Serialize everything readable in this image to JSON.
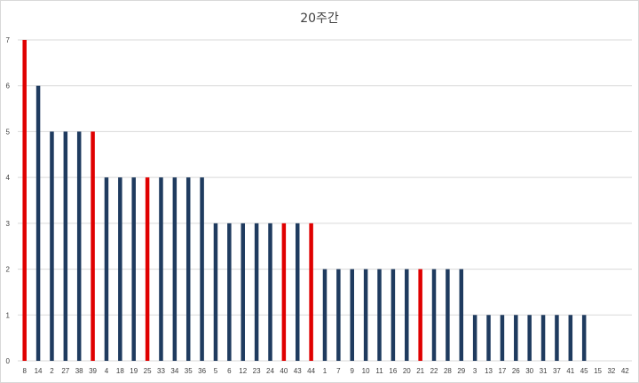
{
  "chart_data": {
    "type": "bar",
    "title": "20주간",
    "categories": [
      "8",
      "14",
      "2",
      "27",
      "38",
      "39",
      "4",
      "18",
      "19",
      "25",
      "33",
      "34",
      "35",
      "36",
      "5",
      "6",
      "12",
      "23",
      "24",
      "40",
      "43",
      "44",
      "1",
      "7",
      "9",
      "10",
      "11",
      "16",
      "20",
      "21",
      "22",
      "28",
      "29",
      "3",
      "13",
      "17",
      "26",
      "30",
      "31",
      "37",
      "41",
      "45",
      "15",
      "32",
      "42"
    ],
    "values": [
      7,
      6,
      5,
      5,
      5,
      5,
      4,
      4,
      4,
      4,
      4,
      4,
      4,
      4,
      3,
      3,
      3,
      3,
      3,
      3,
      3,
      3,
      2,
      2,
      2,
      2,
      2,
      2,
      2,
      2,
      2,
      2,
      2,
      1,
      1,
      1,
      1,
      1,
      1,
      1,
      1,
      1,
      0,
      0,
      0
    ],
    "highlighted": [
      "8",
      "39",
      "25",
      "40",
      "44",
      "21"
    ],
    "colors": {
      "default": "#1f3b5f",
      "highlight": "#e00000",
      "grid": "#d9d9d9"
    },
    "ylim": [
      0,
      7
    ],
    "yticks": [
      0,
      1,
      2,
      3,
      4,
      5,
      6,
      7
    ],
    "grid": true,
    "xlabel": "",
    "ylabel": ""
  }
}
